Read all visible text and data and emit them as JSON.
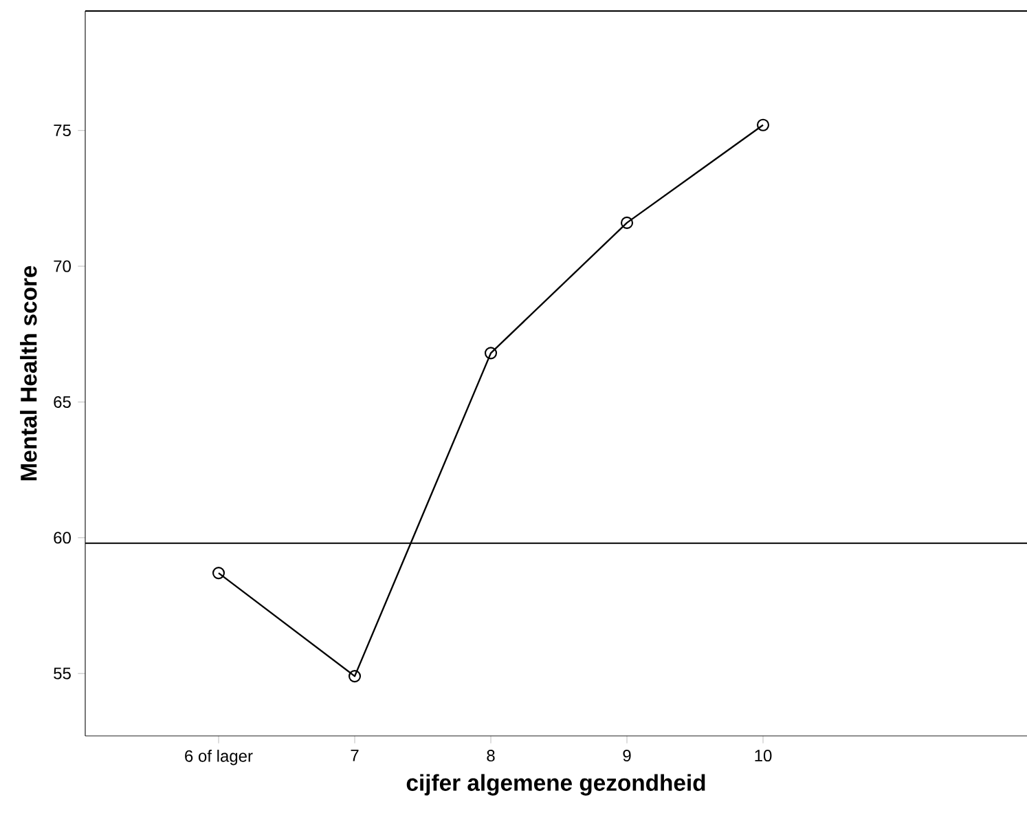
{
  "chart_data": {
    "type": "line",
    "xlabel": "cijfer algemene gezondheid",
    "ylabel": "Mental Health score",
    "categories": [
      "6 of lager",
      "7",
      "8",
      "9",
      "10"
    ],
    "values": [
      58.7,
      54.9,
      66.8,
      71.6,
      75.2
    ],
    "color": "#000000",
    "marker": "circle",
    "line_style": "solid",
    "ylim": [
      52.7,
      79.4
    ],
    "yticks": [
      55,
      60,
      65,
      70,
      75
    ],
    "ref_lines": [
      {
        "axis": "y",
        "value": 59.8,
        "color": "#000000"
      }
    ],
    "grid": false
  }
}
